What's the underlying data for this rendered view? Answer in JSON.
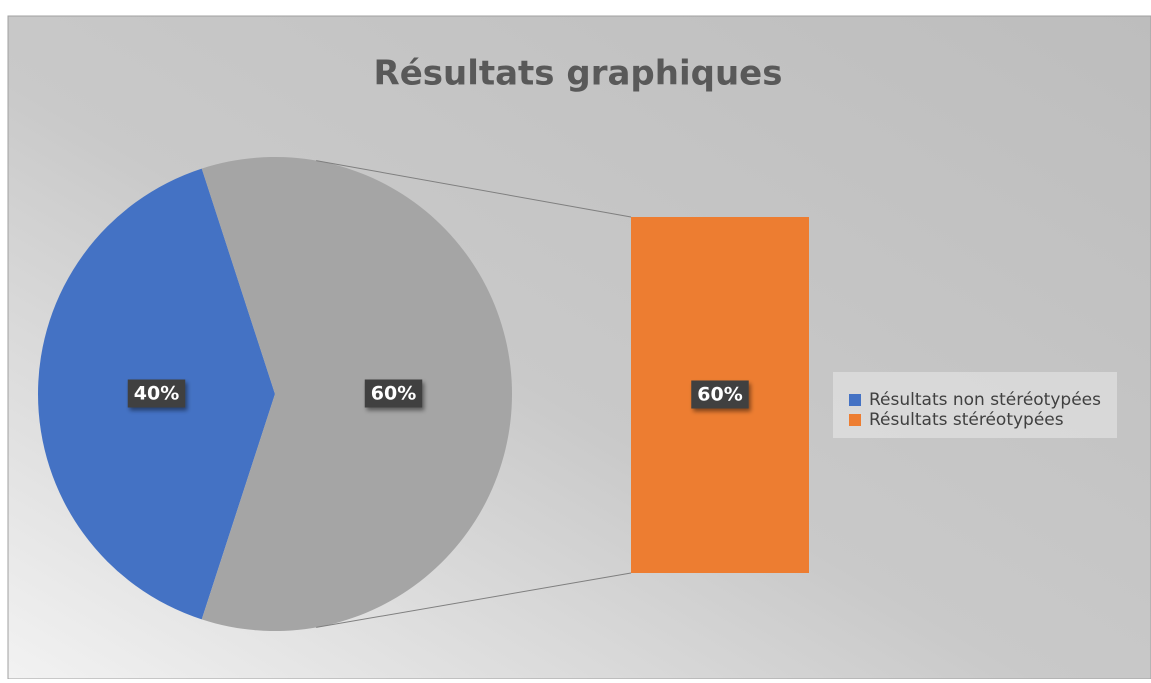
{
  "chart_data": {
    "type": "pie",
    "title": "Résultats graphiques",
    "categories": [
      "Résultats non stéréotypées",
      "Résultats stéréotypées"
    ],
    "values": [
      40,
      60
    ],
    "value_labels": [
      "40%",
      "60%"
    ],
    "colors": [
      "#4472c4",
      "#ed7d31"
    ],
    "other_color": "#a5a5a5",
    "secondary_indices": [
      1
    ],
    "legend": "right"
  }
}
